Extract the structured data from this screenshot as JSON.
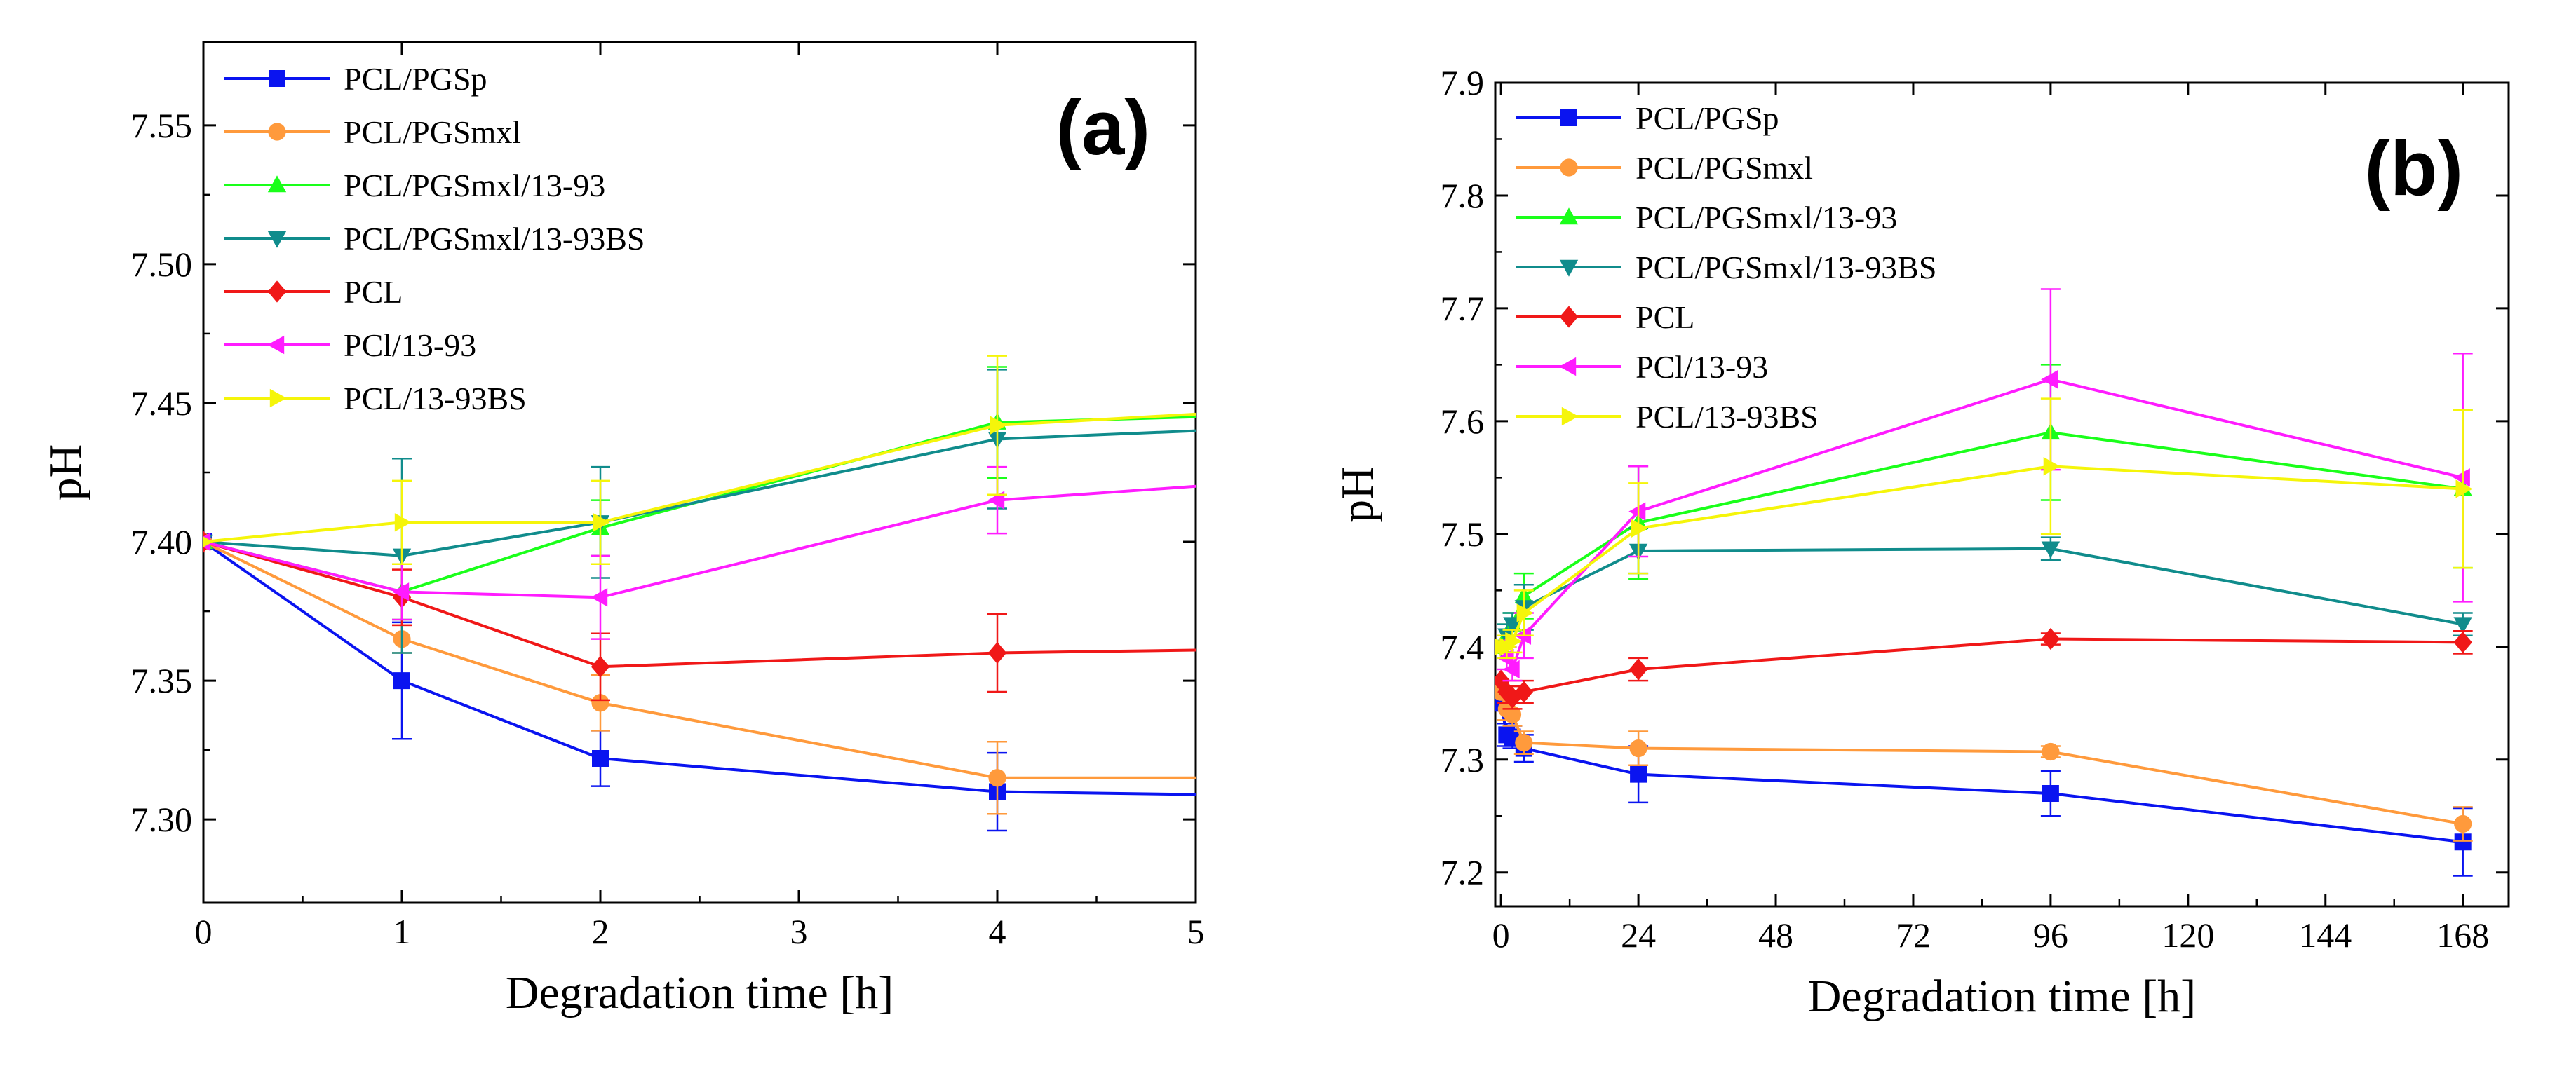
{
  "figure": {
    "panels": [
      "(a)",
      "(b)"
    ]
  },
  "colors": {
    "PCL/PGSp": "#0a14f0",
    "PCL/PGSmxl": "#ff9a3c",
    "PCL/PGSmxl/13-93": "#1aff1a",
    "PCL/PGSmxl/13-93BS": "#108c8c",
    "PCL": "#f01818",
    "PCl/13-93": "#ff1cff",
    "PCL/13-93BS": "#f5f50a"
  },
  "chart_data": [
    {
      "type": "line",
      "panel_label": "(a)",
      "xlabel": "Degradation time [h]",
      "ylabel": "pH",
      "xlim": [
        0,
        5
      ],
      "ylim": [
        7.27,
        7.58
      ],
      "xticks": [
        0,
        1,
        2,
        3,
        4,
        5
      ],
      "xtick_labels": [
        "0",
        "1",
        "2",
        "3",
        "4",
        "5"
      ],
      "yticks": [
        7.3,
        7.35,
        7.4,
        7.45,
        7.5,
        7.55
      ],
      "ytick_labels": [
        "7.30",
        "7.35",
        "7.40",
        "7.45",
        "7.50",
        "7.55"
      ],
      "legend_position": "top-left",
      "grid": false,
      "series": [
        {
          "name": "PCL/PGSp",
          "marker": "square",
          "x": [
            0,
            1,
            2,
            4,
            5
          ],
          "y": [
            7.4,
            7.35,
            7.322,
            7.31,
            7.309
          ],
          "err": [
            0,
            0.021,
            0.01,
            0.014,
            0
          ]
        },
        {
          "name": "PCL/PGSmxl",
          "marker": "circle",
          "x": [
            0,
            1,
            2,
            4,
            5
          ],
          "y": [
            7.4,
            7.365,
            7.342,
            7.315,
            7.315
          ],
          "err": [
            0,
            0.005,
            0.01,
            0.013,
            0
          ]
        },
        {
          "name": "PCL/PGSmxl/13-93",
          "marker": "triangle-up",
          "x": [
            0,
            1,
            2,
            4,
            5
          ],
          "y": [
            7.4,
            7.382,
            7.405,
            7.443,
            7.445
          ],
          "err": [
            0,
            0.01,
            0.01,
            0.02,
            0
          ]
        },
        {
          "name": "PCL/PGSmxl/13-93BS",
          "marker": "triangle-down",
          "x": [
            0,
            1,
            2,
            4,
            5
          ],
          "y": [
            7.4,
            7.395,
            7.407,
            7.437,
            7.44
          ],
          "err": [
            0,
            0.035,
            0.02,
            0.025,
            0
          ]
        },
        {
          "name": "PCL",
          "marker": "diamond",
          "x": [
            0,
            1,
            2,
            4,
            5
          ],
          "y": [
            7.4,
            7.38,
            7.355,
            7.36,
            7.361
          ],
          "err": [
            0,
            0.01,
            0.012,
            0.014,
            0
          ]
        },
        {
          "name": "PCl/13-93",
          "marker": "triangle-left",
          "x": [
            0,
            1,
            2,
            4,
            5
          ],
          "y": [
            7.4,
            7.382,
            7.38,
            7.415,
            7.42
          ],
          "err": [
            0,
            0.01,
            0.015,
            0.012,
            0
          ]
        },
        {
          "name": "PCL/13-93BS",
          "marker": "triangle-right",
          "x": [
            0,
            1,
            2,
            4,
            5
          ],
          "y": [
            7.4,
            7.407,
            7.407,
            7.442,
            7.446
          ],
          "err": [
            0,
            0.015,
            0.015,
            0.025,
            0
          ]
        }
      ]
    },
    {
      "type": "line",
      "panel_label": "(b)",
      "xlabel": "Degradation time [h]",
      "ylabel": "pH",
      "xlim": [
        -1,
        176
      ],
      "ylim": [
        7.17,
        7.9
      ],
      "xticks": [
        0,
        24,
        48,
        72,
        96,
        120,
        144,
        168
      ],
      "xtick_labels": [
        "0",
        "24",
        "48",
        "72",
        "96",
        "120",
        "144",
        "168"
      ],
      "yticks": [
        7.2,
        7.3,
        7.4,
        7.5,
        7.6,
        7.7,
        7.8,
        7.9
      ],
      "ytick_labels": [
        "7.2",
        "7.3",
        "7.4",
        "7.5",
        "7.6",
        "7.7",
        "7.8",
        "7.9"
      ],
      "legend_position": "top-left",
      "grid": false,
      "series": [
        {
          "name": "PCL/PGSp",
          "marker": "square",
          "x": [
            0,
            1,
            2,
            4,
            24,
            96,
            168
          ],
          "y": [
            7.35,
            7.322,
            7.32,
            7.31,
            7.287,
            7.27,
            7.227
          ],
          "err": [
            0,
            0.01,
            0.01,
            0.012,
            0.025,
            0.02,
            0.03
          ]
        },
        {
          "name": "PCL/PGSmxl",
          "marker": "circle",
          "x": [
            0,
            1,
            2,
            4,
            24,
            96,
            168
          ],
          "y": [
            7.36,
            7.345,
            7.34,
            7.315,
            7.31,
            7.307,
            7.243
          ],
          "err": [
            0,
            0.01,
            0.01,
            0.01,
            0.015,
            0.005,
            0.015
          ]
        },
        {
          "name": "PCL/PGSmxl/13-93",
          "marker": "triangle-up",
          "x": [
            0,
            1,
            2,
            4,
            24,
            96,
            168
          ],
          "y": [
            7.4,
            7.41,
            7.42,
            7.445,
            7.51,
            7.59,
            7.54
          ],
          "err": [
            0,
            0.01,
            0.01,
            0.02,
            0.05,
            0.06,
            0.07
          ]
        },
        {
          "name": "PCL/PGSmxl/13-93BS",
          "marker": "triangle-down",
          "x": [
            0,
            1,
            2,
            4,
            24,
            96,
            168
          ],
          "y": [
            7.4,
            7.41,
            7.42,
            7.435,
            7.485,
            7.487,
            7.42
          ],
          "err": [
            0,
            0.01,
            0.01,
            0.02,
            0.02,
            0.01,
            0.01
          ]
        },
        {
          "name": "PCL",
          "marker": "diamond",
          "x": [
            0,
            1,
            2,
            4,
            24,
            96,
            168
          ],
          "y": [
            7.37,
            7.36,
            7.355,
            7.36,
            7.38,
            7.407,
            7.404
          ],
          "err": [
            0,
            0.01,
            0.01,
            0.01,
            0.01,
            0.005,
            0.01
          ]
        },
        {
          "name": "PCl/13-93",
          "marker": "triangle-left",
          "x": [
            0,
            1,
            2,
            4,
            24,
            96,
            168
          ],
          "y": [
            7.4,
            7.39,
            7.38,
            7.41,
            7.52,
            7.637,
            7.55
          ],
          "err": [
            0,
            0.01,
            0.01,
            0.02,
            0.04,
            0.08,
            0.11
          ]
        },
        {
          "name": "PCL/13-93BS",
          "marker": "triangle-right",
          "x": [
            0,
            1,
            2,
            4,
            24,
            96,
            168
          ],
          "y": [
            7.4,
            7.4,
            7.405,
            7.43,
            7.505,
            7.56,
            7.54
          ],
          "err": [
            0,
            0.01,
            0.01,
            0.02,
            0.04,
            0.06,
            0.07
          ]
        }
      ]
    }
  ]
}
